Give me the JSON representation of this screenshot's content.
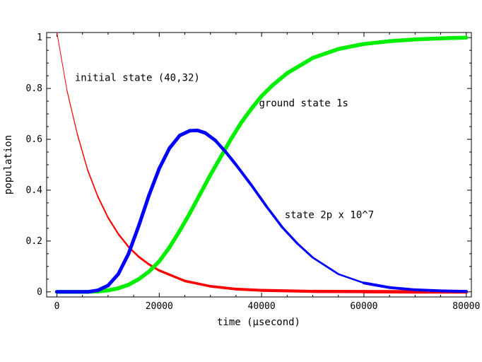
{
  "chart_data": {
    "type": "line",
    "title": "",
    "xlabel": "time (μsecond)",
    "ylabel": "population",
    "xlim": [
      -2000,
      81000
    ],
    "ylim": [
      -0.02,
      1.02
    ],
    "x_ticks": [
      0,
      20000,
      40000,
      60000,
      80000
    ],
    "x_tick_labels": [
      "0",
      "20000",
      "40000",
      "60000",
      "80000"
    ],
    "y_ticks": [
      0,
      0.2,
      0.4,
      0.6,
      0.8,
      1
    ],
    "y_tick_labels": [
      "0",
      "0.2",
      "0.4",
      "0.6",
      "0.8",
      "1"
    ],
    "grid": false,
    "annotations": [
      {
        "text": "initial state (40,32)",
        "x": 3500,
        "y": 0.83
      },
      {
        "text": "ground state 1s",
        "x": 39500,
        "y": 0.73
      },
      {
        "text": "state 2p x 10^7",
        "x": 44500,
        "y": 0.29
      }
    ],
    "series": [
      {
        "color": "#ff0000",
        "x": [
          0,
          2000,
          4000,
          6000,
          8000,
          10000,
          12000,
          14000,
          16000,
          18000,
          20000,
          25000,
          30000,
          35000,
          40000,
          50000,
          60000,
          70000,
          80000
        ],
        "y": [
          1.02,
          0.79,
          0.62,
          0.48,
          0.375,
          0.292,
          0.228,
          0.177,
          0.138,
          0.108,
          0.084,
          0.043,
          0.022,
          0.011,
          0.006,
          0.002,
          0.001,
          0.0,
          0.0
        ]
      },
      {
        "color": "#00ee00",
        "x": [
          0,
          6000,
          8000,
          10000,
          12000,
          14000,
          16000,
          18000,
          20000,
          22000,
          24000,
          26000,
          28000,
          30000,
          32000,
          34000,
          36000,
          38000,
          40000,
          42000,
          45000,
          50000,
          55000,
          60000,
          65000,
          70000,
          75000,
          80000
        ],
        "y": [
          0.0,
          0.0,
          0.002,
          0.006,
          0.014,
          0.028,
          0.05,
          0.08,
          0.12,
          0.175,
          0.24,
          0.31,
          0.385,
          0.46,
          0.53,
          0.6,
          0.665,
          0.72,
          0.77,
          0.81,
          0.86,
          0.92,
          0.955,
          0.975,
          0.986,
          0.993,
          0.997,
          1.0
        ]
      },
      {
        "color": "#0000ff",
        "x": [
          0,
          6000,
          8000,
          10000,
          12000,
          14000,
          16000,
          18000,
          20000,
          22000,
          24000,
          26000,
          27500,
          29000,
          31000,
          33000,
          35000,
          38000,
          41000,
          44000,
          47000,
          50000,
          55000,
          60000,
          65000,
          70000,
          75000,
          80000
        ],
        "y": [
          0.0,
          0.0,
          0.006,
          0.025,
          0.07,
          0.15,
          0.26,
          0.38,
          0.485,
          0.565,
          0.615,
          0.634,
          0.635,
          0.625,
          0.595,
          0.55,
          0.5,
          0.42,
          0.335,
          0.255,
          0.19,
          0.135,
          0.07,
          0.035,
          0.017,
          0.008,
          0.004,
          0.002
        ]
      }
    ]
  }
}
